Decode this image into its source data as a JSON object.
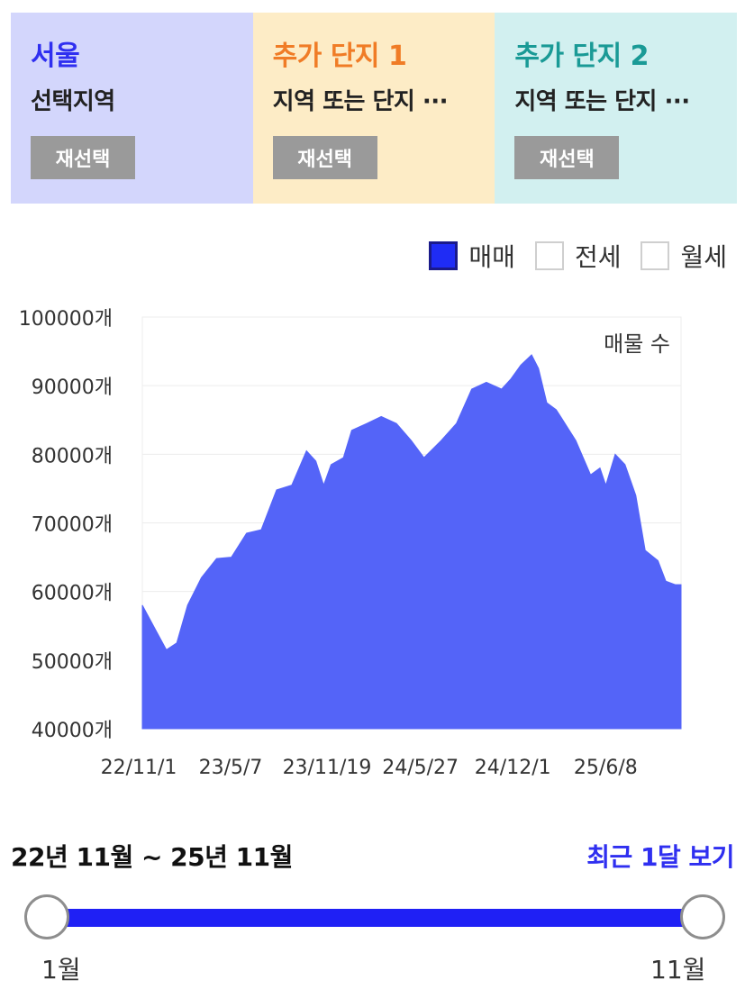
{
  "cards": [
    {
      "title": "서울",
      "subtitle": "선택지역",
      "button": "재선택",
      "bg": "#d3d6fc",
      "title_color": "#2f2ff0"
    },
    {
      "title": "추가 단지 1",
      "subtitle": "지역 또는 단지 ···",
      "button": "재선택",
      "bg": "#fdecc6",
      "title_color": "#f07c26"
    },
    {
      "title": "추가 단지 2",
      "subtitle": "지역 또는 단지 ···",
      "button": "재선택",
      "bg": "#d2f0f0",
      "title_color": "#1a9a96"
    }
  ],
  "legend": [
    {
      "label": "매매",
      "checked": true
    },
    {
      "label": "전세",
      "checked": false
    },
    {
      "label": "월세",
      "checked": false
    }
  ],
  "chart_data": {
    "type": "area",
    "title": "",
    "annotation": "매물 수",
    "ylim": [
      40000,
      100000
    ],
    "y_ticks": [
      "100000개",
      "90000개",
      "80000개",
      "70000개",
      "60000개",
      "50000개",
      "40000개"
    ],
    "y_tick_values": [
      100000,
      90000,
      80000,
      70000,
      60000,
      50000,
      40000
    ],
    "x_ticks": [
      "22/11/1",
      "23/5/7",
      "23/11/19",
      "24/5/27",
      "24/12/1",
      "25/6/8"
    ],
    "x_tick_dates": [
      "2022-11-01",
      "2023-05-07",
      "2023-11-19",
      "2024-05-27",
      "2024-12-01",
      "2025-06-08"
    ],
    "grid": true,
    "color": "#5464f8",
    "series": [
      {
        "x": [
          "2022-11-01",
          "2022-12-01",
          "2022-12-20",
          "2023-01-10",
          "2023-02-01",
          "2023-03-01",
          "2023-04-01",
          "2023-05-01",
          "2023-06-01",
          "2023-07-01",
          "2023-08-01",
          "2023-09-01",
          "2023-10-01",
          "2023-10-20",
          "2023-11-05",
          "2023-11-20",
          "2023-12-15",
          "2024-01-01",
          "2024-02-01",
          "2024-03-01",
          "2024-04-01",
          "2024-05-01",
          "2024-05-27",
          "2024-07-01",
          "2024-08-01",
          "2024-09-01",
          "2024-10-01",
          "2024-11-01",
          "2024-11-20",
          "2024-12-10",
          "2025-01-01",
          "2025-01-15",
          "2025-02-01",
          "2025-02-20",
          "2025-03-01",
          "2025-04-01",
          "2025-05-01",
          "2025-05-20",
          "2025-06-01",
          "2025-06-20",
          "2025-07-10",
          "2025-08-01",
          "2025-08-20",
          "2025-09-15",
          "2025-10-01",
          "2025-10-20",
          "2025-11-01"
        ],
        "values": [
          58000,
          54000,
          51500,
          52500,
          58000,
          62000,
          64800,
          65000,
          68500,
          69000,
          74800,
          75500,
          80500,
          79000,
          75500,
          78500,
          79500,
          83500,
          84500,
          85500,
          84500,
          82000,
          79500,
          82000,
          84500,
          89500,
          90500,
          89500,
          91000,
          93000,
          94500,
          92500,
          87500,
          86500,
          85500,
          82000,
          77000,
          78000,
          75500,
          80000,
          78500,
          74000,
          66000,
          64500,
          61500,
          61000,
          61000
        ]
      }
    ]
  },
  "range": {
    "title": "22년 11월 ~ 25년 11월",
    "recent": "최근 1달 보기",
    "left_label": "1월",
    "right_label": "11월"
  }
}
